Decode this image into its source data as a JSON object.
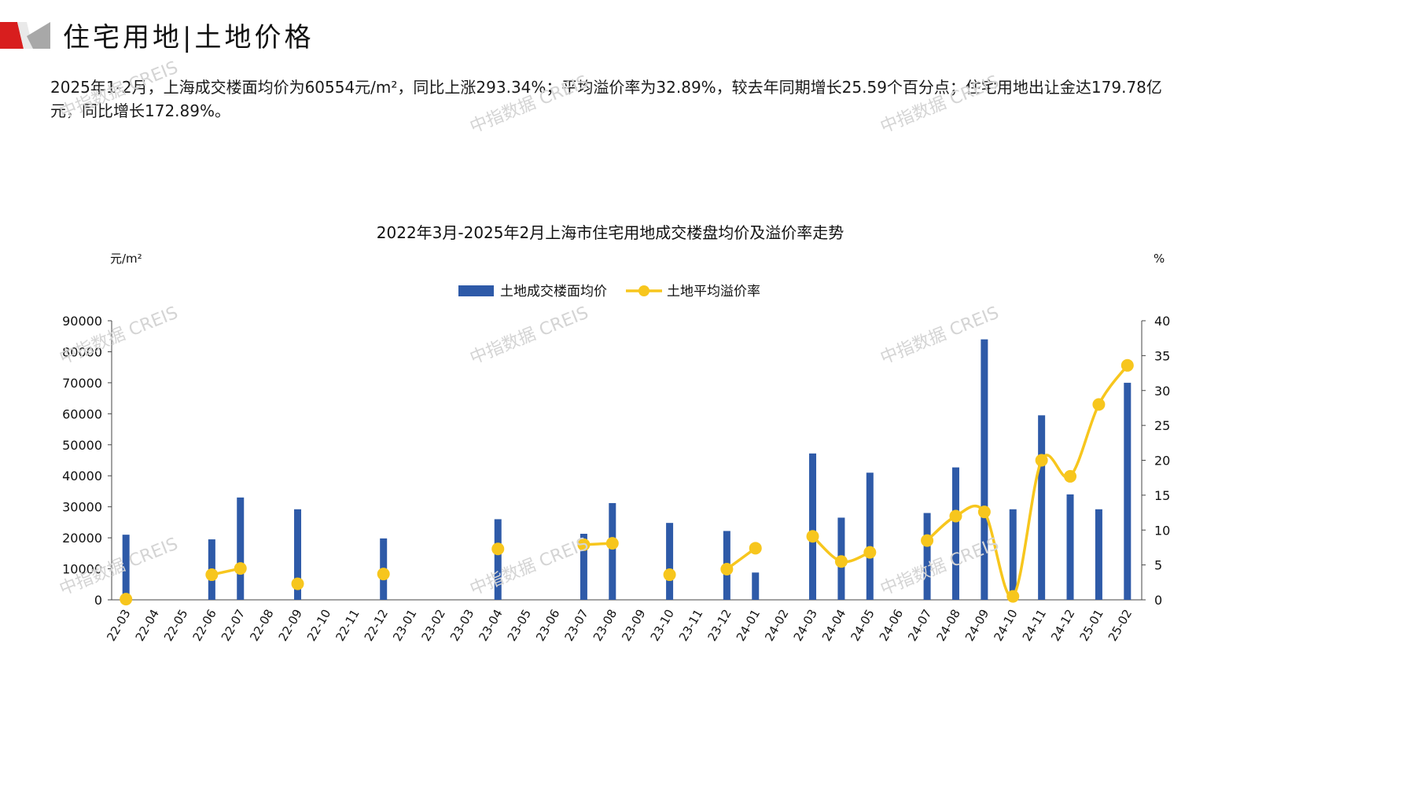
{
  "header": {
    "title": "住宅用地|土地价格",
    "colors": {
      "accent_red": "#d81e1e",
      "accent_gray": "#a8a8a8"
    }
  },
  "summary": {
    "text": "2025年1-2月，上海成交楼面均价为60554元/m²，同比上涨293.34%；平均溢价率为32.89%，较去年同期增长25.59个百分点；住宅用地出让金达179.78亿元，同比增长172.89%。"
  },
  "watermarks": [
    "中指数据 CREIS",
    "中指数据 CREIS",
    "中指数据 CREIS",
    "中指数据 CREIS",
    "中指数据 CREIS",
    "中指数据 CREIS",
    "中指数据 CREIS",
    "中指数据 CREIS",
    "中指数据 CREIS"
  ],
  "chart_data": {
    "type": "bar",
    "title": "2022年3月-2025年2月上海市住宅用地成交楼盘均价及溢价率走势",
    "y_left_unit": "元/m²",
    "y_right_unit": "%",
    "y_left_lim": [
      0,
      90000
    ],
    "y_left_ticks": [
      0,
      10000,
      20000,
      30000,
      40000,
      50000,
      60000,
      70000,
      80000,
      90000
    ],
    "y_right_lim": [
      0,
      40
    ],
    "y_right_ticks": [
      0,
      5,
      10,
      15,
      20,
      25,
      30,
      35,
      40
    ],
    "legend_position": "top-center",
    "grid": false,
    "categories": [
      "22-03",
      "22-04",
      "22-05",
      "22-06",
      "22-07",
      "22-08",
      "22-09",
      "22-10",
      "22-11",
      "22-12",
      "23-01",
      "23-02",
      "23-03",
      "23-04",
      "23-05",
      "23-06",
      "23-07",
      "23-08",
      "23-09",
      "23-10",
      "23-11",
      "23-12",
      "24-01",
      "24-02",
      "24-03",
      "24-04",
      "24-05",
      "24-06",
      "24-07",
      "24-08",
      "24-09",
      "24-10",
      "24-11",
      "24-12",
      "25-01",
      "25-02"
    ],
    "series": [
      {
        "name": "土地成交楼面均价",
        "type": "bar",
        "axis": "left",
        "color": "#2e5aa8",
        "values": [
          21000,
          null,
          null,
          19500,
          33000,
          null,
          29200,
          null,
          null,
          19800,
          null,
          null,
          null,
          26000,
          null,
          null,
          21300,
          31200,
          null,
          24800,
          null,
          22200,
          8800,
          null,
          47200,
          26500,
          41000,
          null,
          28000,
          42700,
          84000,
          29200,
          59500,
          34000,
          29200,
          70000
        ]
      },
      {
        "name": "土地平均溢价率",
        "type": "line",
        "axis": "right",
        "color": "#f7c61d",
        "values": [
          0.1,
          null,
          null,
          3.6,
          4.5,
          null,
          2.3,
          null,
          null,
          3.7,
          null,
          null,
          null,
          7.3,
          null,
          null,
          7.9,
          8.1,
          null,
          3.6,
          null,
          4.4,
          7.4,
          null,
          9.1,
          5.5,
          6.8,
          null,
          8.5,
          12.0,
          12.6,
          0.5,
          20.0,
          17.7,
          28.0,
          33.6
        ]
      }
    ]
  }
}
